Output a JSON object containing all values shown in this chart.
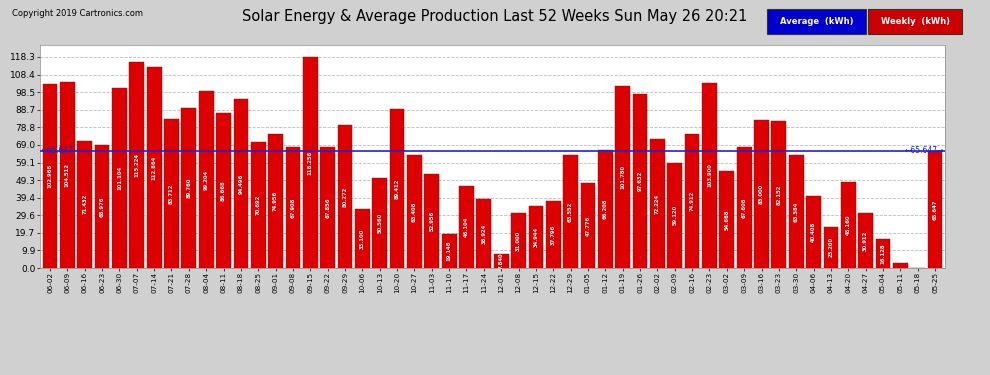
{
  "title": "Solar Energy & Average Production Last 52 Weeks Sun May 26 20:21",
  "copyright": "Copyright 2019 Cartronics.com",
  "average_value": 65.647,
  "bar_color": "#dd0000",
  "average_line_color": "#2222cc",
  "background_color": "#d0d0d0",
  "plot_bg_color": "#ffffff",
  "grid_color": "#aaaaaa",
  "yticks": [
    0.0,
    9.9,
    19.7,
    29.6,
    39.4,
    49.3,
    59.1,
    69.0,
    78.8,
    88.7,
    98.5,
    108.4,
    118.3
  ],
  "legend_avg_color": "#0000cc",
  "legend_weekly_color": "#cc0000",
  "weeks": [
    {
      "date": "06-02",
      "value": 102.968
    },
    {
      "date": "06-09",
      "value": 104.512
    },
    {
      "date": "06-16",
      "value": 71.432
    },
    {
      "date": "06-23",
      "value": 68.976
    },
    {
      "date": "06-30",
      "value": 101.104
    },
    {
      "date": "07-07",
      "value": 115.224
    },
    {
      "date": "07-14",
      "value": 112.864
    },
    {
      "date": "07-21",
      "value": 83.712
    },
    {
      "date": "07-28",
      "value": 89.76
    },
    {
      "date": "08-04",
      "value": 99.204
    },
    {
      "date": "08-11",
      "value": 86.668
    },
    {
      "date": "08-18",
      "value": 94.496
    },
    {
      "date": "08-25",
      "value": 70.692
    },
    {
      "date": "09-01",
      "value": 74.956
    },
    {
      "date": "09-08",
      "value": 67.908
    },
    {
      "date": "09-15",
      "value": 118.256
    },
    {
      "date": "09-22",
      "value": 67.856
    },
    {
      "date": "09-29",
      "value": 80.272
    },
    {
      "date": "10-06",
      "value": 33.1
    },
    {
      "date": "10-13",
      "value": 50.56
    },
    {
      "date": "10-20",
      "value": 89.412
    },
    {
      "date": "10-27",
      "value": 63.408
    },
    {
      "date": "11-03",
      "value": 52.956
    },
    {
      "date": "11-10",
      "value": 19.148
    },
    {
      "date": "11-17",
      "value": 46.104
    },
    {
      "date": "11-24",
      "value": 38.924
    },
    {
      "date": "12-01",
      "value": 7.84
    },
    {
      "date": "12-08",
      "value": 31.0
    },
    {
      "date": "12-15",
      "value": 34.944
    },
    {
      "date": "12-22",
      "value": 37.796
    },
    {
      "date": "12-29",
      "value": 63.552
    },
    {
      "date": "01-05",
      "value": 47.776
    },
    {
      "date": "01-12",
      "value": 66.208
    },
    {
      "date": "01-19",
      "value": 101.78
    },
    {
      "date": "01-26",
      "value": 97.632
    },
    {
      "date": "02-02",
      "value": 72.224
    },
    {
      "date": "02-09",
      "value": 59.12
    },
    {
      "date": "02-16",
      "value": 74.912
    },
    {
      "date": "02-23",
      "value": 103.9
    },
    {
      "date": "03-02",
      "value": 54.668
    },
    {
      "date": "03-09",
      "value": 67.608
    },
    {
      "date": "03-16",
      "value": 83.0
    },
    {
      "date": "03-23",
      "value": 82.152
    },
    {
      "date": "03-30",
      "value": 63.584
    },
    {
      "date": "04-06",
      "value": 40.408
    },
    {
      "date": "04-13",
      "value": 23.2
    },
    {
      "date": "04-20",
      "value": 48.16
    },
    {
      "date": "04-27",
      "value": 30.912
    },
    {
      "date": "05-04",
      "value": 16.128
    },
    {
      "date": "05-11",
      "value": 3.012
    },
    {
      "date": "05-18",
      "value": 0.0
    },
    {
      "date": "05-25",
      "value": 65.647
    }
  ]
}
